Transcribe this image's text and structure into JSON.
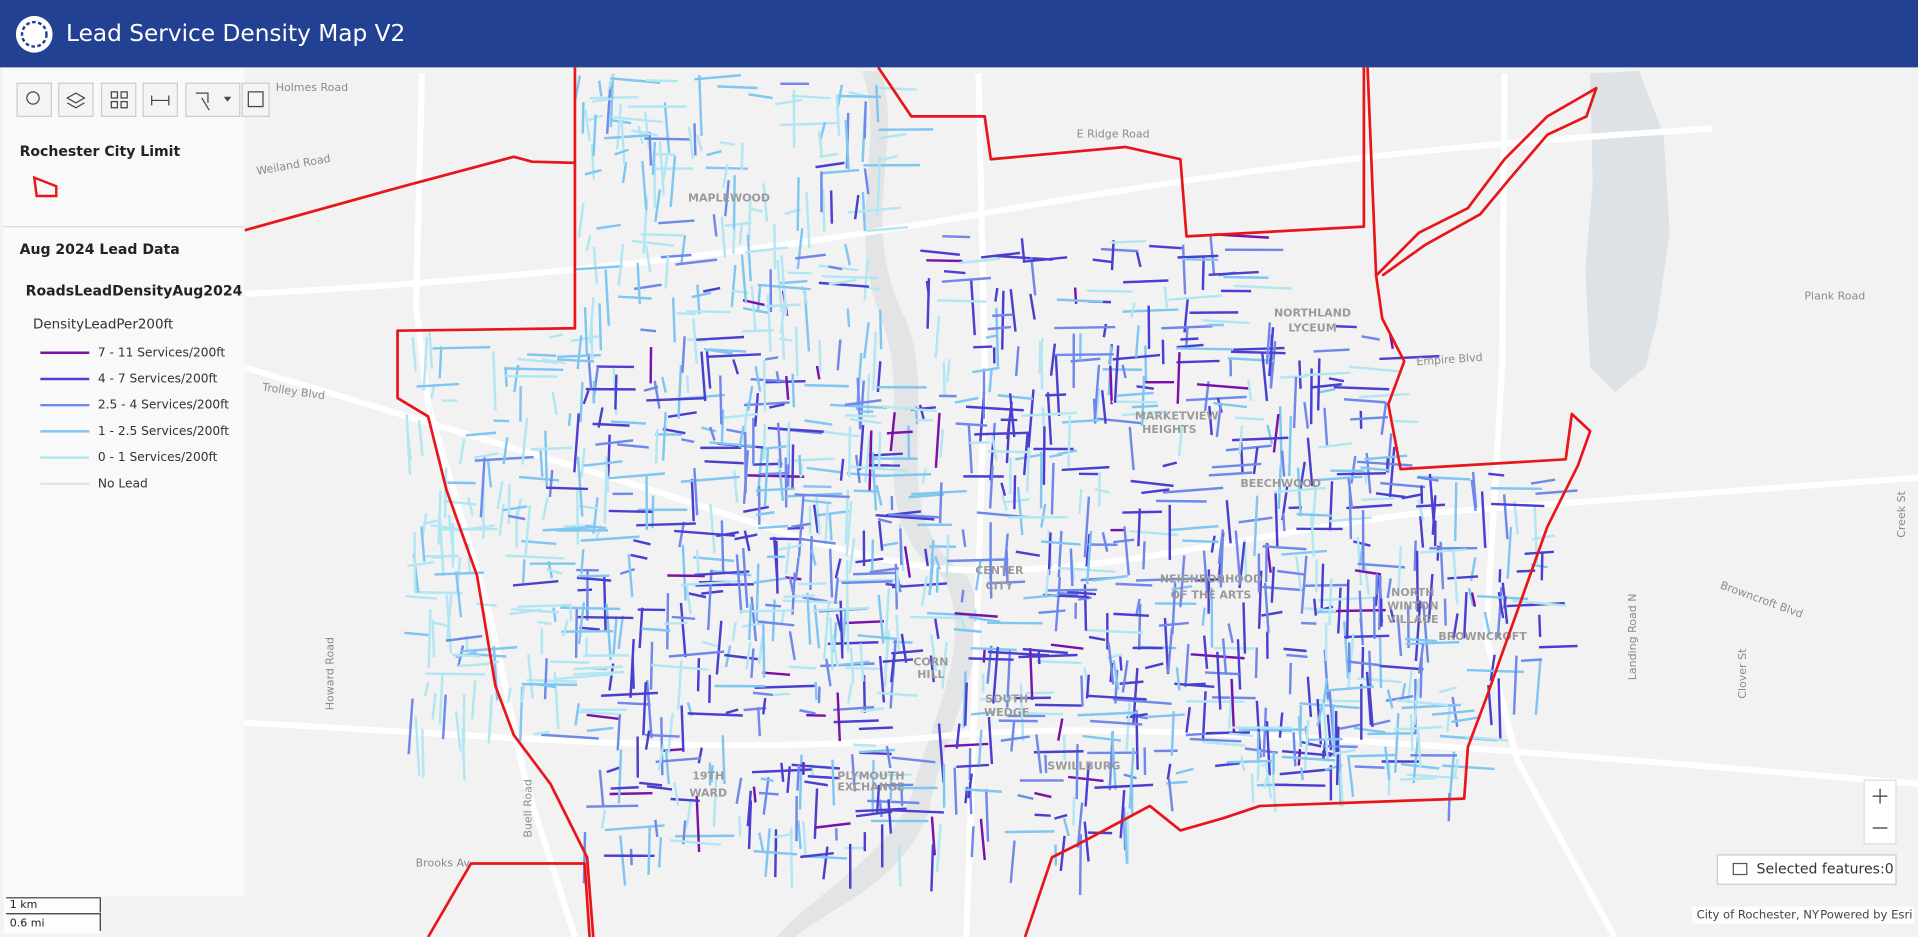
{
  "header": {
    "title": "Lead Service Density Map V2"
  },
  "legend": {
    "boundary_layer": "Rochester City Limit",
    "group": "Aug 2024 Lead Data",
    "layer": "RoadsLeadDensityAug2024",
    "field": "DensityLeadPer200ft",
    "classes": [
      {
        "label": "7 - 11 Services/200ft",
        "color": "#7a12a8"
      },
      {
        "label": "4 - 7 Services/200ft",
        "color": "#4a3fcf"
      },
      {
        "label": "2.5 - 4 Services/200ft",
        "color": "#6f88ea"
      },
      {
        "label": "1 - 2.5 Services/200ft",
        "color": "#80c6f0"
      },
      {
        "label": "0 - 1 Services/200ft",
        "color": "#b2e6f3"
      },
      {
        "label": "No Lead",
        "color": "#e4e4e4"
      }
    ]
  },
  "map_labels": [
    "Holmes Road",
    "Weiland Road",
    "E Ridge Road",
    "Plank Road",
    "Empire Blvd",
    "Trolley Blvd",
    "Howard Road",
    "Buell Road",
    "Brooks Av",
    "Browncroft Blvd",
    "Landing Road N",
    "Clover St",
    "Creek St",
    "NORTHLAND",
    "LYCEUM",
    "MAPLEWOOD",
    "CENTER",
    "CITY",
    "19TH",
    "WARD",
    "BEECHWOOD",
    "NEIGHBORHOOD",
    "OF THE ARTS",
    "NORTH",
    "WINTON",
    "VILLAGE",
    "BROWNCROFT",
    "PLYMOUTH",
    "EXCHANGE",
    "SOUTH",
    "WEDGE",
    "MARKETVIEW",
    "HEIGHTS",
    "SWILLBURG",
    "CORN",
    "HILL"
  ],
  "scale_bar": {
    "metric": "1 km",
    "imperial": "0.6 mi"
  },
  "selection": "Selected features:0",
  "attribution": {
    "source": "City of Rochester, NY",
    "powered": "Powered by Esri"
  }
}
